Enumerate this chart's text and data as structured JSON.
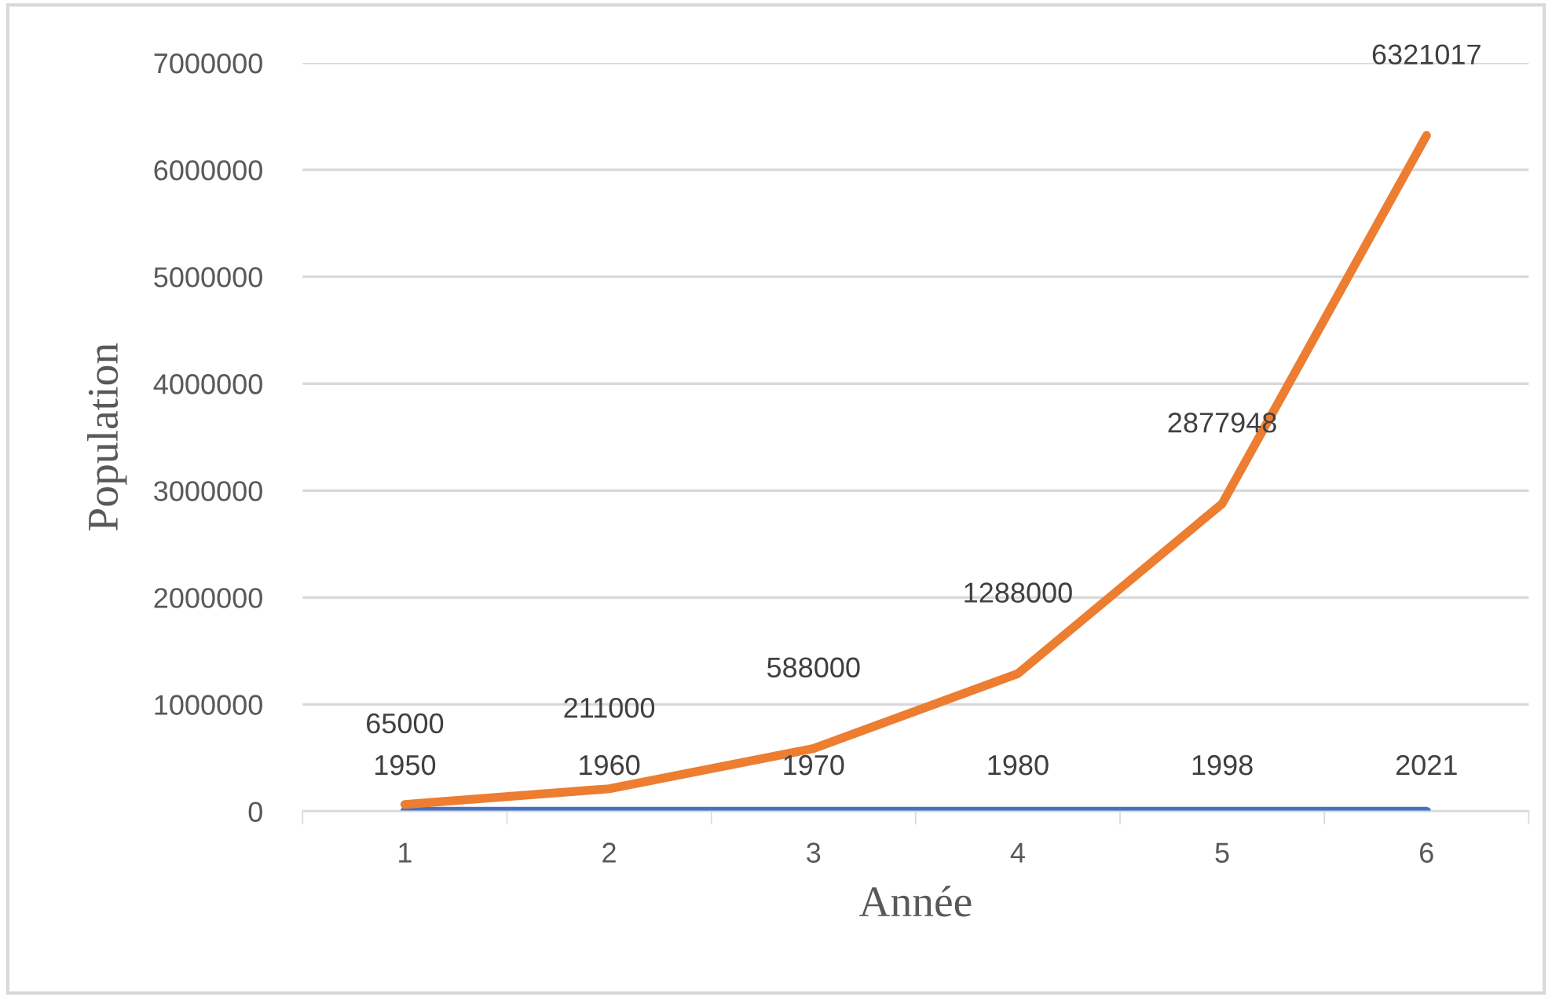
{
  "chart_data": {
    "type": "line",
    "xlabel": "Année",
    "ylabel": "Population",
    "categories": [
      "1",
      "2",
      "3",
      "4",
      "5",
      "6"
    ],
    "series": [
      {
        "color": "#4472c4",
        "values": [
          1950,
          1960,
          1970,
          1980,
          1998,
          2021
        ]
      },
      {
        "color": "#ed7d31",
        "values": [
          65000,
          211000,
          588000,
          1288000,
          2877948,
          6321017
        ]
      }
    ],
    "ylim": [
      0,
      7000000
    ],
    "yticks": [
      0,
      1000000,
      2000000,
      3000000,
      4000000,
      5000000,
      6000000,
      7000000
    ],
    "grid": "y",
    "data_labels": true,
    "marker": "none",
    "line_style": "solid"
  }
}
